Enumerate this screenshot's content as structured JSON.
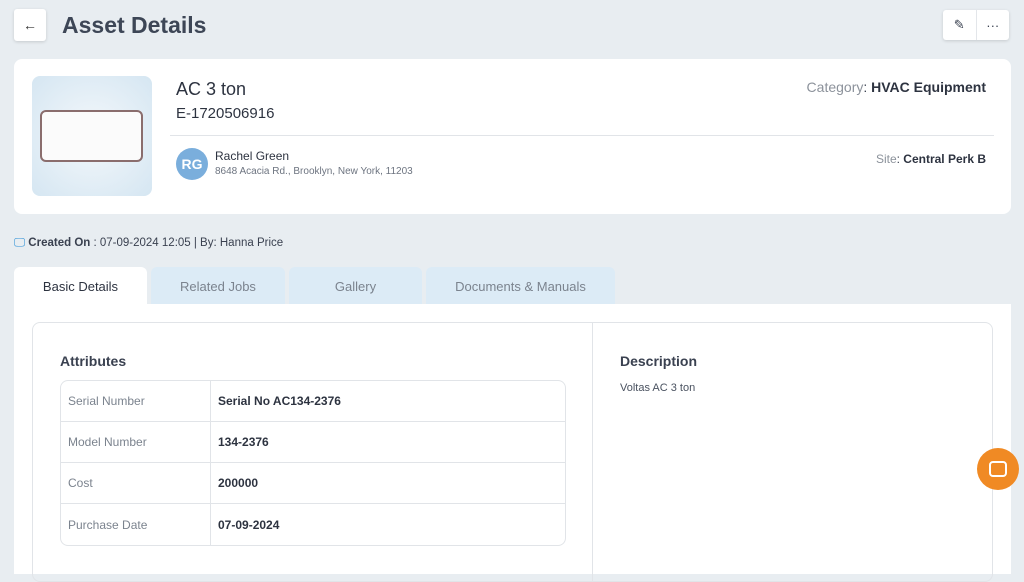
{
  "header": {
    "title": "Asset Details",
    "back_icon": "←",
    "edit_icon": "✎",
    "more_icon": "···"
  },
  "asset": {
    "name": "AC 3 ton",
    "code": "E-1720506916",
    "category_label": "Category",
    "category": "HVAC Equipment",
    "site_label": "Site",
    "site": "Central Perk B",
    "customer": {
      "initials": "RG",
      "name": "Rachel Green",
      "address": "8648 Acacia Rd., Brooklyn, New York, 11203"
    }
  },
  "created": {
    "label": "Created On",
    "value": " : 07-09-2024 12:05 | By: Hanna Price"
  },
  "tabs": [
    {
      "label": "Basic Details"
    },
    {
      "label": "Related Jobs"
    },
    {
      "label": "Gallery"
    },
    {
      "label": "Documents & Manuals"
    }
  ],
  "attributes": {
    "title": "Attributes",
    "rows": [
      {
        "label": "Serial Number",
        "value": "Serial No AC134-2376"
      },
      {
        "label": "Model Number",
        "value": "134-2376"
      },
      {
        "label": "Cost",
        "value": "200000"
      },
      {
        "label": "Purchase Date",
        "value": "07-09-2024"
      }
    ]
  },
  "description": {
    "title": "Description",
    "text": "Voltas AC 3 ton"
  }
}
